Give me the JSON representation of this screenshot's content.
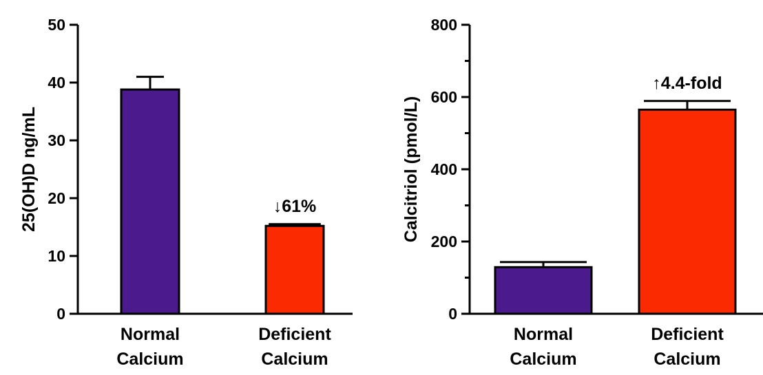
{
  "chart_data": [
    {
      "type": "bar",
      "title": "",
      "xlabel": "",
      "ylabel": "25(OH)D ng/mL",
      "ylim": [
        0,
        50
      ],
      "yticks": [
        0,
        10,
        20,
        30,
        40,
        50
      ],
      "minor_ticks": false,
      "categories": [
        "Normal Calcium",
        "Deficient Calcium"
      ],
      "category_lines": [
        [
          "Normal",
          "Calcium"
        ],
        [
          "Deficient",
          "Calcium"
        ]
      ],
      "values": [
        38.8,
        15.2
      ],
      "errors": [
        2.2,
        0.3
      ],
      "colors": [
        "#4b1a8c",
        "#fc2a00"
      ],
      "annotation": {
        "text": "↓61%",
        "category_index": 1
      }
    },
    {
      "type": "bar",
      "title": "",
      "xlabel": "",
      "ylabel": "Calcitriol (pmol/L)",
      "ylim": [
        0,
        800
      ],
      "yticks": [
        0,
        200,
        400,
        600,
        800
      ],
      "minor_ticks": true,
      "categories": [
        "Normal Calcium",
        "Deficient Calcium"
      ],
      "category_lines": [
        [
          "Normal",
          "Calcium"
        ],
        [
          "Deficient",
          "Calcium"
        ]
      ],
      "values": [
        129,
        565
      ],
      "errors": [
        14,
        24
      ],
      "colors": [
        "#4b1a8c",
        "#fc2a00"
      ],
      "annotation": {
        "text": "↑4.4-fold",
        "category_index": 1
      }
    }
  ]
}
